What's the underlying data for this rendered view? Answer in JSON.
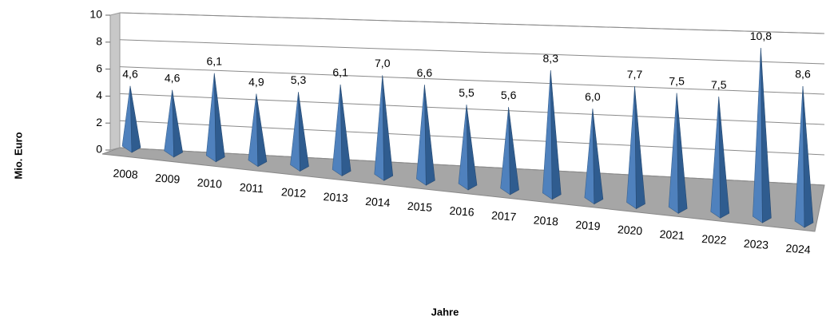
{
  "chart_data": {
    "type": "pyramid3d",
    "categories": [
      "2008",
      "2009",
      "2010",
      "2011",
      "2012",
      "2013",
      "2014",
      "2015",
      "2016",
      "2017",
      "2018",
      "2019",
      "2020",
      "2021",
      "2022",
      "2023",
      "2024"
    ],
    "values": [
      4.6,
      4.6,
      6.1,
      4.9,
      5.3,
      6.1,
      7.0,
      6.6,
      5.5,
      5.6,
      8.3,
      6.0,
      7.7,
      7.5,
      7.5,
      10.8,
      8.6
    ],
    "value_labels": [
      "4,6",
      "4,6",
      "6,1",
      "4,9",
      "5,3",
      "6,1",
      "7,0",
      "6,6",
      "5,5",
      "5,6",
      "8,3",
      "6,0",
      "7,7",
      "7,5",
      "7,5",
      "10,8",
      "8,6"
    ],
    "color": "#4f81bd",
    "ylim": [
      0,
      10
    ],
    "yticks": [
      0,
      2,
      4,
      6,
      8,
      10
    ],
    "grid": true,
    "xlabel": "Jahre",
    "ylabel": "Mio. Euro"
  }
}
